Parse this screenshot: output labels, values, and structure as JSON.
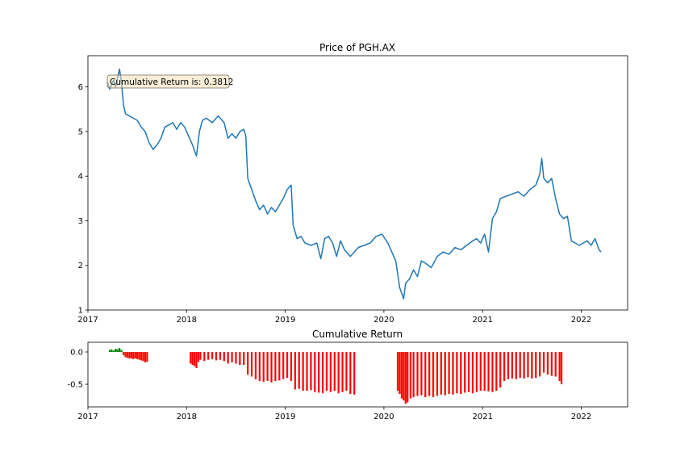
{
  "chart_data": [
    {
      "type": "line",
      "title": "Price of PGH.AX",
      "xlabel": "",
      "ylabel": "",
      "xlim": [
        2017.0,
        2022.47
      ],
      "ylim": [
        1.0,
        6.7
      ],
      "x_ticks": [
        "2017",
        "2018",
        "2019",
        "2020",
        "2021",
        "2022"
      ],
      "y_ticks": [
        "1",
        "2",
        "3",
        "4",
        "5",
        "6"
      ],
      "annotation": "Cumulative Return is: 0.3812",
      "line_color": "#1f77b4",
      "series": [
        {
          "x": [
            2017.2,
            2017.22,
            2017.24,
            2017.26,
            2017.28,
            2017.3,
            2017.32,
            2017.34,
            2017.36,
            2017.38,
            2017.42,
            2017.46,
            2017.5,
            2017.54,
            2017.58,
            2017.62,
            2017.66,
            2017.7,
            2017.74,
            2017.78,
            2017.82,
            2017.86,
            2017.9,
            2017.94,
            2017.98,
            2018.02,
            2018.06,
            2018.1,
            2018.13,
            2018.16,
            2018.2,
            2018.26,
            2018.32,
            2018.38,
            2018.42,
            2018.46,
            2018.5,
            2018.54,
            2018.58,
            2018.6,
            2018.62,
            2018.66,
            2018.7,
            2018.74,
            2018.78,
            2018.82,
            2018.86,
            2018.9,
            2018.94,
            2018.98,
            2019.02,
            2019.06,
            2019.08,
            2019.12,
            2019.16,
            2019.2,
            2019.26,
            2019.32,
            2019.36,
            2019.4,
            2019.44,
            2019.48,
            2019.52,
            2019.56,
            2019.6,
            2019.66,
            2019.7,
            2019.74,
            2019.8,
            2019.86,
            2019.92,
            2019.98,
            2020.04,
            2020.08,
            2020.12,
            2020.16,
            2020.2,
            2020.22,
            2020.26,
            2020.3,
            2020.34,
            2020.38,
            2020.42,
            2020.48,
            2020.54,
            2020.6,
            2020.66,
            2020.72,
            2020.78,
            2020.84,
            2020.9,
            2020.94,
            2020.98,
            2021.02,
            2021.06,
            2021.1,
            2021.14,
            2021.18,
            2021.24,
            2021.3,
            2021.36,
            2021.42,
            2021.48,
            2021.54,
            2021.58,
            2021.6,
            2021.62,
            2021.66,
            2021.7,
            2021.74,
            2021.78,
            2021.82,
            2021.86,
            2021.9,
            2021.94,
            2021.98,
            2022.02,
            2022.06,
            2022.1,
            2022.14,
            2022.18,
            2022.2
          ],
          "y": [
            6.1,
            5.95,
            6.05,
            6.15,
            6.0,
            6.2,
            6.4,
            6.1,
            5.6,
            5.4,
            5.35,
            5.3,
            5.25,
            5.1,
            5.0,
            4.75,
            4.6,
            4.7,
            4.85,
            5.1,
            5.15,
            5.2,
            5.05,
            5.2,
            5.1,
            4.9,
            4.7,
            4.45,
            5.0,
            5.25,
            5.3,
            5.2,
            5.35,
            5.2,
            4.85,
            4.95,
            4.85,
            5.0,
            5.05,
            4.9,
            3.95,
            3.7,
            3.45,
            3.25,
            3.35,
            3.15,
            3.3,
            3.2,
            3.35,
            3.5,
            3.7,
            3.8,
            2.9,
            2.6,
            2.65,
            2.5,
            2.45,
            2.5,
            2.15,
            2.6,
            2.65,
            2.5,
            2.2,
            2.55,
            2.35,
            2.2,
            2.3,
            2.4,
            2.45,
            2.5,
            2.65,
            2.7,
            2.5,
            2.3,
            2.1,
            1.5,
            1.25,
            1.6,
            1.7,
            1.9,
            1.75,
            2.1,
            2.05,
            1.95,
            2.2,
            2.3,
            2.25,
            2.4,
            2.35,
            2.45,
            2.55,
            2.6,
            2.5,
            2.7,
            2.3,
            3.05,
            3.2,
            3.5,
            3.55,
            3.6,
            3.65,
            3.55,
            3.7,
            3.8,
            4.05,
            4.4,
            3.95,
            3.85,
            3.95,
            3.5,
            3.15,
            3.05,
            3.1,
            2.55,
            2.5,
            2.45,
            2.5,
            2.55,
            2.45,
            2.6,
            2.35,
            2.3
          ]
        }
      ]
    },
    {
      "type": "bar",
      "title": "Cumulative Return",
      "xlabel": "",
      "ylabel": "",
      "xlim": [
        2017.0,
        2022.47
      ],
      "ylim": [
        -0.85,
        0.15
      ],
      "x_ticks": [
        "2017",
        "2018",
        "2019",
        "2020",
        "2021",
        "2022"
      ],
      "y_ticks": [
        "0.0",
        "-0.5"
      ],
      "positive_color": "#008000",
      "negative_color": "#ff0000",
      "series": [
        {
          "x": [
            2017.22,
            2017.24,
            2017.26,
            2017.28,
            2017.3,
            2017.32,
            2017.34,
            2017.36,
            2017.38,
            2017.4,
            2017.42,
            2017.44,
            2017.46,
            2017.48,
            2017.5,
            2017.52,
            2017.54,
            2017.56,
            2017.58,
            2017.6,
            2018.04,
            2018.06,
            2018.08,
            2018.1,
            2018.12,
            2018.14,
            2018.18,
            2018.22,
            2018.26,
            2018.3,
            2018.34,
            2018.38,
            2018.42,
            2018.46,
            2018.5,
            2018.54,
            2018.58,
            2018.62,
            2018.66,
            2018.7,
            2018.74,
            2018.78,
            2018.82,
            2018.86,
            2018.9,
            2018.94,
            2018.98,
            2019.02,
            2019.06,
            2019.1,
            2019.14,
            2019.18,
            2019.22,
            2019.26,
            2019.3,
            2019.34,
            2019.38,
            2019.42,
            2019.46,
            2019.5,
            2019.54,
            2019.58,
            2019.62,
            2019.66,
            2019.7,
            2020.14,
            2020.16,
            2020.18,
            2020.2,
            2020.22,
            2020.24,
            2020.27,
            2020.3,
            2020.34,
            2020.38,
            2020.42,
            2020.46,
            2020.5,
            2020.54,
            2020.58,
            2020.62,
            2020.66,
            2020.7,
            2020.74,
            2020.78,
            2020.82,
            2020.86,
            2020.9,
            2020.94,
            2020.98,
            2021.02,
            2021.06,
            2021.1,
            2021.14,
            2021.18,
            2021.22,
            2021.26,
            2021.3,
            2021.34,
            2021.38,
            2021.42,
            2021.46,
            2021.5,
            2021.54,
            2021.58,
            2021.62,
            2021.66,
            2021.7,
            2021.74,
            2021.78,
            2021.8
          ],
          "values": [
            0.03,
            0.04,
            0.02,
            0.05,
            0.04,
            0.06,
            0.03,
            -0.05,
            -0.08,
            -0.09,
            -0.1,
            -0.1,
            -0.11,
            -0.1,
            -0.11,
            -0.12,
            -0.13,
            -0.14,
            -0.16,
            -0.15,
            -0.18,
            -0.2,
            -0.22,
            -0.25,
            -0.15,
            -0.12,
            -0.14,
            -0.12,
            -0.11,
            -0.13,
            -0.12,
            -0.14,
            -0.18,
            -0.16,
            -0.18,
            -0.2,
            -0.2,
            -0.35,
            -0.38,
            -0.42,
            -0.45,
            -0.46,
            -0.45,
            -0.47,
            -0.45,
            -0.44,
            -0.42,
            -0.4,
            -0.45,
            -0.58,
            -0.57,
            -0.6,
            -0.6,
            -0.59,
            -0.62,
            -0.63,
            -0.64,
            -0.6,
            -0.62,
            -0.6,
            -0.64,
            -0.62,
            -0.6,
            -0.65,
            -0.66,
            -0.6,
            -0.65,
            -0.72,
            -0.75,
            -0.8,
            -0.78,
            -0.72,
            -0.7,
            -0.68,
            -0.67,
            -0.7,
            -0.68,
            -0.7,
            -0.68,
            -0.66,
            -0.67,
            -0.65,
            -0.66,
            -0.64,
            -0.65,
            -0.63,
            -0.62,
            -0.64,
            -0.62,
            -0.6,
            -0.6,
            -0.61,
            -0.62,
            -0.6,
            -0.55,
            -0.45,
            -0.42,
            -0.41,
            -0.42,
            -0.4,
            -0.41,
            -0.39,
            -0.41,
            -0.4,
            -0.38,
            -0.32,
            -0.35,
            -0.37,
            -0.38,
            -0.45,
            -0.5
          ]
        }
      ]
    }
  ]
}
